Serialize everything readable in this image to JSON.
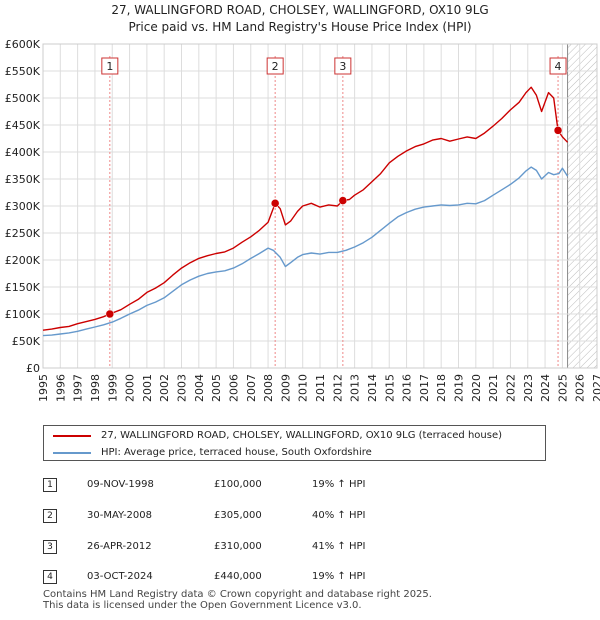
{
  "chart_data": {
    "type": "line",
    "title": "27, WALLINGFORD ROAD, CHOLSEY, WALLINGFORD, OX10 9LG",
    "subtitle": "Price paid vs. HM Land Registry's House Price Index (HPI)",
    "xlim": [
      1995,
      2027
    ],
    "ylim": [
      0,
      600000
    ],
    "y_tick_labels": [
      "£0",
      "£50K",
      "£100K",
      "£150K",
      "£200K",
      "£250K",
      "£300K",
      "£350K",
      "£400K",
      "£450K",
      "£500K",
      "£550K",
      "£600K"
    ],
    "x_tick_labels": [
      "1995",
      "1996",
      "1997",
      "1998",
      "1999",
      "2000",
      "2001",
      "2002",
      "2003",
      "2004",
      "2005",
      "2006",
      "2007",
      "2008",
      "2009",
      "2010",
      "2011",
      "2012",
      "2013",
      "2014",
      "2015",
      "2016",
      "2017",
      "2018",
      "2019",
      "2020",
      "2021",
      "2022",
      "2023",
      "2024",
      "2025",
      "2026",
      "2027"
    ],
    "grid": true,
    "forecast_start": 2025.3,
    "series": [
      {
        "name": "27, WALLINGFORD ROAD, CHOLSEY, WALLINGFORD, OX10 9LG (terraced house)",
        "color": "#cc0000",
        "x": [
          1995.0,
          1995.5,
          1996.0,
          1996.5,
          1997.0,
          1997.5,
          1998.0,
          1998.5,
          1998.85,
          1999.5,
          2000.0,
          2000.5,
          2001.0,
          2001.5,
          2002.0,
          2002.5,
          2003.0,
          2003.5,
          2004.0,
          2004.5,
          2005.0,
          2005.5,
          2006.0,
          2006.5,
          2007.0,
          2007.5,
          2008.0,
          2008.41,
          2008.7,
          2009.0,
          2009.3,
          2009.7,
          2010.0,
          2010.5,
          2011.0,
          2011.5,
          2012.0,
          2012.32,
          2012.7,
          2013.0,
          2013.5,
          2014.0,
          2014.5,
          2015.0,
          2015.5,
          2016.0,
          2016.5,
          2017.0,
          2017.5,
          2018.0,
          2018.5,
          2019.0,
          2019.5,
          2020.0,
          2020.5,
          2021.0,
          2021.5,
          2022.0,
          2022.5,
          2022.9,
          2023.2,
          2023.5,
          2023.8,
          2024.2,
          2024.5,
          2024.75,
          2025.0,
          2025.3
        ],
        "values": [
          70000,
          72000,
          75000,
          77000,
          82000,
          86000,
          90000,
          95000,
          100000,
          108000,
          118000,
          127000,
          140000,
          148000,
          158000,
          172000,
          185000,
          195000,
          203000,
          208000,
          212000,
          215000,
          222000,
          233000,
          243000,
          255000,
          270000,
          305000,
          295000,
          265000,
          272000,
          290000,
          300000,
          305000,
          298000,
          302000,
          300000,
          310000,
          312000,
          320000,
          330000,
          345000,
          360000,
          380000,
          392000,
          402000,
          410000,
          415000,
          422000,
          425000,
          420000,
          424000,
          428000,
          425000,
          435000,
          448000,
          462000,
          478000,
          492000,
          510000,
          520000,
          505000,
          475000,
          510000,
          500000,
          440000,
          428000,
          418000
        ]
      },
      {
        "name": "HPI: Average price, terraced house, South Oxfordshire",
        "color": "#6699cc",
        "x": [
          1995.0,
          1995.5,
          1996.0,
          1996.5,
          1997.0,
          1997.5,
          1998.0,
          1998.5,
          1999.0,
          1999.5,
          2000.0,
          2000.5,
          2001.0,
          2001.5,
          2002.0,
          2002.5,
          2003.0,
          2003.5,
          2004.0,
          2004.5,
          2005.0,
          2005.5,
          2006.0,
          2006.5,
          2007.0,
          2007.5,
          2008.0,
          2008.3,
          2008.7,
          2009.0,
          2009.3,
          2009.7,
          2010.0,
          2010.5,
          2011.0,
          2011.5,
          2012.0,
          2012.5,
          2013.0,
          2013.5,
          2014.0,
          2014.5,
          2015.0,
          2015.5,
          2016.0,
          2016.5,
          2017.0,
          2017.5,
          2018.0,
          2018.5,
          2019.0,
          2019.5,
          2020.0,
          2020.5,
          2021.0,
          2021.5,
          2022.0,
          2022.5,
          2022.9,
          2023.2,
          2023.5,
          2023.8,
          2024.2,
          2024.5,
          2024.8,
          2025.0,
          2025.3
        ],
        "values": [
          60000,
          61000,
          63000,
          65000,
          68000,
          72000,
          76000,
          80000,
          85000,
          92000,
          100000,
          107000,
          116000,
          122000,
          130000,
          142000,
          154000,
          163000,
          170000,
          175000,
          178000,
          180000,
          185000,
          193000,
          203000,
          212000,
          222000,
          218000,
          205000,
          188000,
          195000,
          205000,
          210000,
          213000,
          211000,
          214000,
          214000,
          218000,
          224000,
          232000,
          242000,
          255000,
          268000,
          280000,
          288000,
          294000,
          298000,
          300000,
          302000,
          301000,
          302000,
          305000,
          304000,
          310000,
          320000,
          330000,
          340000,
          352000,
          365000,
          372000,
          366000,
          350000,
          362000,
          358000,
          360000,
          370000,
          355000
        ]
      }
    ],
    "markers": [
      {
        "id": "1",
        "x": 1998.86,
        "value": 100000
      },
      {
        "id": "2",
        "x": 2008.41,
        "value": 305000
      },
      {
        "id": "3",
        "x": 2012.32,
        "value": 310000
      },
      {
        "id": "4",
        "x": 2024.75,
        "value": 440000
      }
    ]
  },
  "legend": {
    "property_label": "27, WALLINGFORD ROAD, CHOLSEY, WALLINGFORD, OX10 9LG (terraced house)",
    "hpi_label": "HPI: Average price, terraced house, South Oxfordshire"
  },
  "transactions": [
    {
      "num": "1",
      "date": "09-NOV-1998",
      "price": "£100,000",
      "hpi": "19% ↑ HPI"
    },
    {
      "num": "2",
      "date": "30-MAY-2008",
      "price": "£305,000",
      "hpi": "40% ↑ HPI"
    },
    {
      "num": "3",
      "date": "26-APR-2012",
      "price": "£310,000",
      "hpi": "41% ↑ HPI"
    },
    {
      "num": "4",
      "date": "03-OCT-2024",
      "price": "£440,000",
      "hpi": "19% ↑ HPI"
    }
  ],
  "footer": {
    "line1": "Contains HM Land Registry data © Crown copyright and database right 2025.",
    "line2": "This data is licensed under the Open Government Licence v3.0."
  }
}
